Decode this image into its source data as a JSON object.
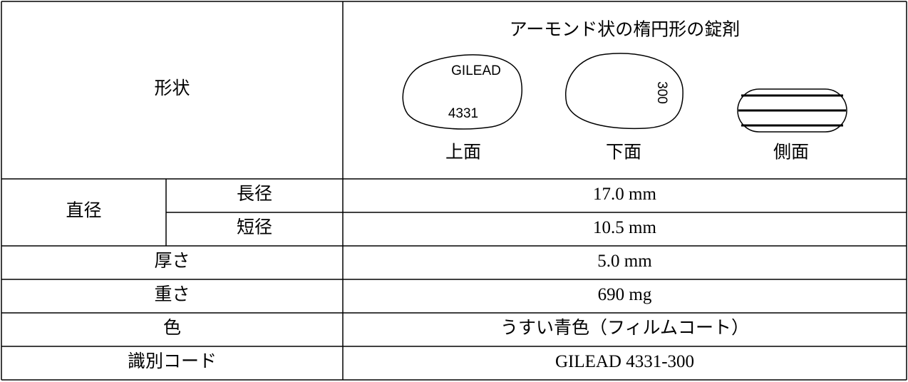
{
  "table": {
    "shape": {
      "label": "形状",
      "description": "アーモンド状の楕円形の錠剤",
      "views": [
        {
          "caption": "上面",
          "marks": [
            "GILEAD",
            "4331"
          ]
        },
        {
          "caption": "下面",
          "marks": [
            "300"
          ]
        },
        {
          "caption": "側面"
        }
      ]
    },
    "diameter": {
      "label": "直径",
      "rows": [
        [
          "長径",
          "17.0 mm"
        ],
        [
          "短径",
          "10.5 mm"
        ]
      ]
    },
    "rows": [
      [
        "厚さ",
        "5.0 mm"
      ],
      [
        "重さ",
        "690 mg"
      ],
      [
        "色",
        "うすい青色（フィルムコート）"
      ],
      [
        "識別コード",
        "GILEAD 4331-300"
      ]
    ]
  }
}
